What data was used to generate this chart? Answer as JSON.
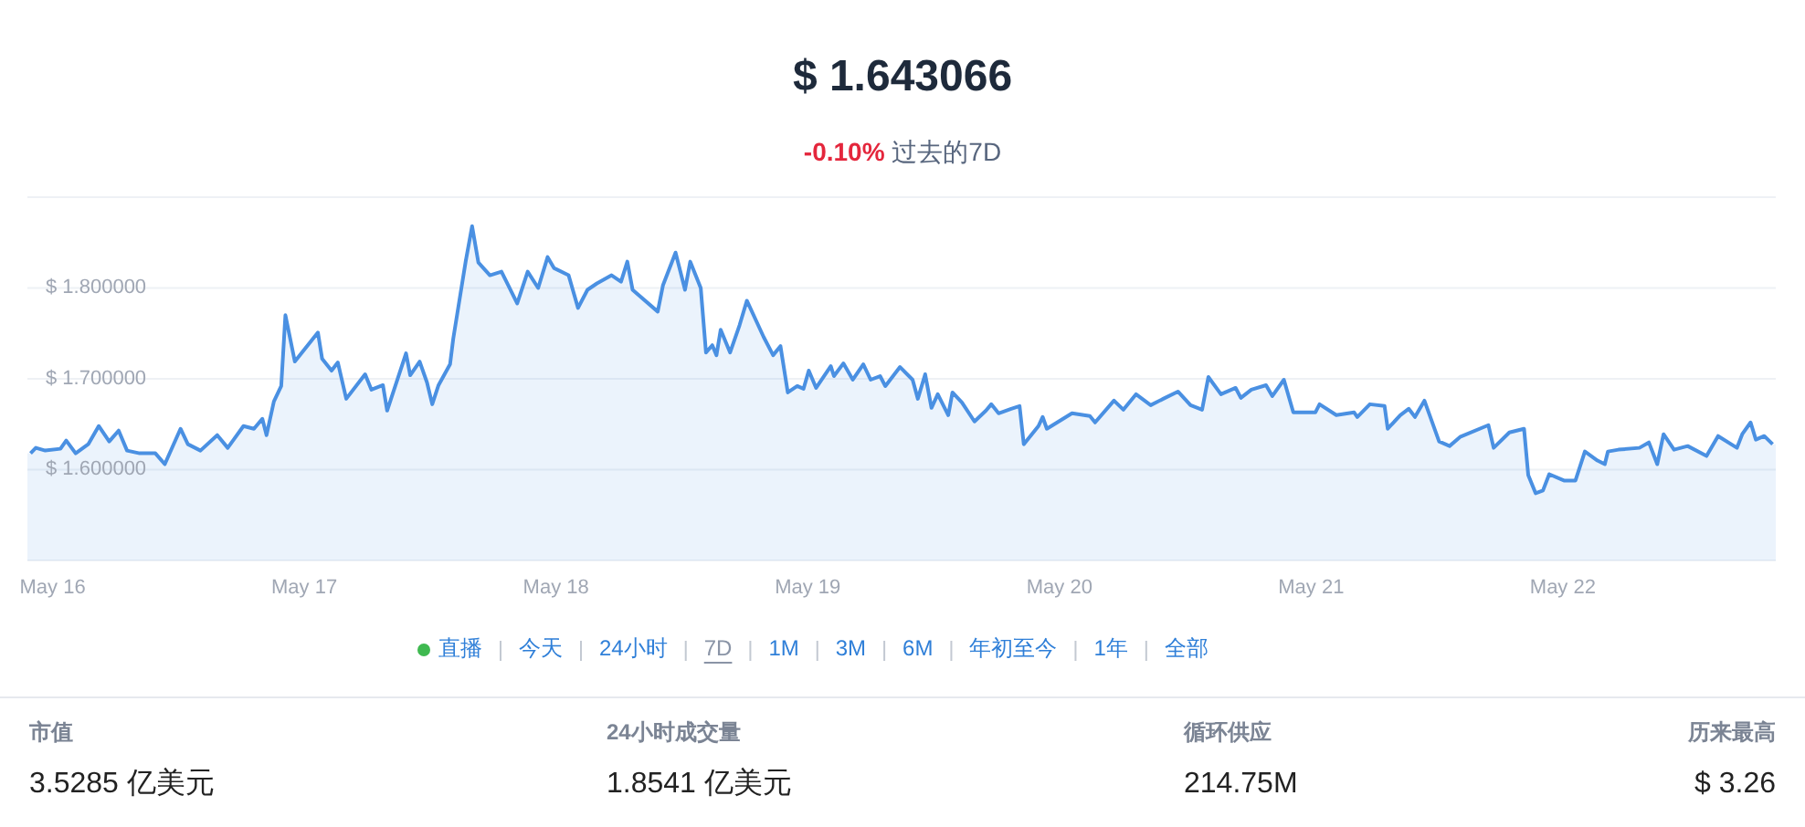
{
  "chart_data": [
    {
      "type": "area",
      "title": "$ 1.643066",
      "subtitle": "-0.10% 过去的7D",
      "x": [
        "--05-15T21:54",
        "--05-15T22:24",
        "--05-15T23:18",
        "--05-16T00:45",
        "--05-16T01:18",
        "--05-16T02:12",
        "--05-16T03:24",
        "--05-16T04:24",
        "--05-16T05:24",
        "--05-16T06:18",
        "--05-16T07:06",
        "--05-16T08:18",
        "--05-16T09:48",
        "--05-16T10:42",
        "--05-16T12:12",
        "--05-16T12:54",
        "--05-16T14:06",
        "--05-16T15:42",
        "--05-16T16:42",
        "--05-16T18:12",
        "--05-16T19:12",
        "--05-16T20:00",
        "--05-16T20:24",
        "--05-16T21:06",
        "--05-16T21:48",
        "--05-16T22:12",
        "--05-16T23:06",
        "--05-17T01:18",
        "--05-17T01:42",
        "--05-17T02:36",
        "--05-17T03:12",
        "--05-17T04:00",
        "--05-17T05:48",
        "--05-17T06:24",
        "--05-17T07:30",
        "--05-17T07:54",
        "--05-17T09:42",
        "--05-17T10:06",
        "--05-17T11:00",
        "--05-17T11:42",
        "--05-17T12:12",
        "--05-17T12:48",
        "--05-17T13:54",
        "--05-17T14:12",
        "--05-17T15:24",
        "--05-17T16:00",
        "--05-17T16:36",
        "--05-17T17:42",
        "--05-17T18:48",
        "--05-17T20:18",
        "--05-17T21:18",
        "--05-17T22:18",
        "--05-17T23:12",
        "--05-17T23:48",
        "--05-18T01:12",
        "--05-18T02:06",
        "--05-18T03:00",
        "--05-18T03:54",
        "--05-18T05:18",
        "--05-18T06:12",
        "--05-18T06:48",
        "--05-18T07:18",
        "--05-18T09:42",
        "--05-18T10:12",
        "--05-18T11:24",
        "--05-18T12:18",
        "--05-18T12:48",
        "--05-18T13:48",
        "--05-18T14:18",
        "--05-18T14:54",
        "--05-18T15:18",
        "--05-18T15:42",
        "--05-18T16:36",
        "--05-18T17:30",
        "--05-18T18:12",
        "--05-18T19:48",
        "--05-18T20:42",
        "--05-18T21:24",
        "--05-18T22:06",
        "--05-18T23:00",
        "--05-18T23:36",
        "--05-19T00:06",
        "--05-19T00:48",
        "--05-19T02:12",
        "--05-19T02:30",
        "--05-19T03:24",
        "--05-19T04:18",
        "--05-19T05:18",
        "--05-19T06:00",
        "--05-19T06:54",
        "--05-19T07:24",
        "--05-19T08:48",
        "--05-19T10:00",
        "--05-19T10:30",
        "--05-19T11:12",
        "--05-19T11:48",
        "--05-19T12:24",
        "--05-19T13:24",
        "--05-19T13:48",
        "--05-19T14:42",
        "--05-19T15:54",
        "--05-19T17:00",
        "--05-19T17:30",
        "--05-19T18:12",
        "--05-19T19:24",
        "--05-19T20:12",
        "--05-19T20:36",
        "--05-19T22:00",
        "--05-19T22:24",
        "--05-19T22:48",
        "--05-20T01:12",
        "--05-20T02:54",
        "--05-20T03:24",
        "--05-20T05:12",
        "--05-20T06:06",
        "--05-20T07:18",
        "--05-20T08:42",
        "--05-20T09:54",
        "--05-20T11:18",
        "--05-20T12:30",
        "--05-20T13:36",
        "--05-20T14:12",
        "--05-20T15:24",
        "--05-20T16:48",
        "--05-20T17:18",
        "--05-20T18:18",
        "--05-20T19:42",
        "--05-20T20:18",
        "--05-20T21:24",
        "--05-20T22:18",
        "--05-21T00:24",
        "--05-21T00:48",
        "--05-21T02:24",
        "--05-21T04:06",
        "--05-21T04:24",
        "--05-21T05:36",
        "--05-21T07:00",
        "--05-21T07:18",
        "--05-21T08:30",
        "--05-21T09:18",
        "--05-21T09:54",
        "--05-21T10:48",
        "--05-21T12:12",
        "--05-21T13:12",
        "--05-21T14:12",
        "--05-21T16:54",
        "--05-21T17:24",
        "--05-21T18:54",
        "--05-21T20:18",
        "--05-21T20:42",
        "--05-21T21:24",
        "--05-21T22:06",
        "--05-21T22:42",
        "--05-22T00:06",
        "--05-22T01:12",
        "--05-22T02:06",
        "--05-22T03:18",
        "--05-22T04:00",
        "--05-22T04:18",
        "--05-22T05:18",
        "--05-22T07:18",
        "--05-22T08:12",
        "--05-22T09:00",
        "--05-22T09:36",
        "--05-22T10:36",
        "--05-22T11:54",
        "--05-22T13:42",
        "--05-22T14:48",
        "--05-22T16:36",
        "--05-22T17:06",
        "--05-22T17:54",
        "--05-22T18:24",
        "--05-22T19:12",
        "--05-22T20:00"
      ],
      "series": [
        {
          "color": "#4a90e2",
          "values": [
            1.618,
            1.624,
            1.621,
            1.623,
            1.632,
            1.618,
            1.628,
            1.648,
            1.631,
            1.643,
            1.621,
            1.618,
            1.618,
            1.606,
            1.645,
            1.628,
            1.621,
            1.638,
            1.624,
            1.648,
            1.645,
            1.656,
            1.638,
            1.675,
            1.692,
            1.77,
            1.719,
            1.751,
            1.722,
            1.709,
            1.718,
            1.678,
            1.705,
            1.688,
            1.693,
            1.665,
            1.728,
            1.704,
            1.719,
            1.696,
            1.672,
            1.693,
            1.716,
            1.744,
            1.83,
            1.868,
            1.828,
            1.814,
            1.818,
            1.783,
            1.818,
            1.8,
            1.834,
            1.822,
            1.814,
            1.778,
            1.798,
            1.805,
            1.814,
            1.807,
            1.829,
            1.798,
            1.774,
            1.803,
            1.839,
            1.798,
            1.829,
            1.8,
            1.729,
            1.737,
            1.726,
            1.754,
            1.729,
            1.759,
            1.786,
            1.746,
            1.726,
            1.736,
            1.685,
            1.692,
            1.689,
            1.709,
            1.69,
            1.714,
            1.703,
            1.717,
            1.699,
            1.716,
            1.699,
            1.703,
            1.692,
            1.713,
            1.699,
            1.678,
            1.705,
            1.668,
            1.683,
            1.66,
            1.685,
            1.674,
            1.653,
            1.665,
            1.672,
            1.662,
            1.667,
            1.67,
            1.628,
            1.648,
            1.658,
            1.645,
            1.662,
            1.659,
            1.652,
            1.676,
            1.666,
            1.683,
            1.671,
            1.678,
            1.686,
            1.671,
            1.666,
            1.702,
            1.683,
            1.69,
            1.679,
            1.688,
            1.693,
            1.681,
            1.699,
            1.663,
            1.663,
            1.672,
            1.66,
            1.663,
            1.658,
            1.672,
            1.67,
            1.645,
            1.66,
            1.667,
            1.658,
            1.676,
            1.631,
            1.626,
            1.636,
            1.649,
            1.624,
            1.641,
            1.645,
            1.594,
            1.574,
            1.577,
            1.595,
            1.588,
            1.588,
            1.62,
            1.61,
            1.606,
            1.62,
            1.622,
            1.624,
            1.63,
            1.606,
            1.639,
            1.622,
            1.626,
            1.615,
            1.637,
            1.624,
            1.639,
            1.652,
            1.633,
            1.637,
            1.628
          ]
        }
      ],
      "xlim": [
        "--05-15T21:36",
        "--05-22T20:18"
      ],
      "xticks": [
        {
          "value": "--05-16",
          "label": "May 16"
        },
        {
          "value": "--05-17",
          "label": "May 17"
        },
        {
          "value": "--05-18",
          "label": "May 18"
        },
        {
          "value": "--05-19",
          "label": "May 19"
        },
        {
          "value": "--05-20",
          "label": "May 20"
        },
        {
          "value": "--05-21",
          "label": "May 21"
        },
        {
          "value": "--05-22",
          "label": "May 22"
        }
      ],
      "ylim": [
        1.5,
        1.9
      ],
      "yticks": [
        {
          "value": 1.5,
          "label": null
        },
        {
          "value": 1.6,
          "label": "$ 1.600000"
        },
        {
          "value": 1.7,
          "label": "$ 1.700000"
        },
        {
          "value": 1.8,
          "label": "$ 1.800000"
        },
        {
          "value": 1.9,
          "label": null
        }
      ],
      "grid": "y",
      "marker": "none",
      "annotations": [
        "直播",
        "今天",
        "24小时",
        "7D",
        "1M",
        "3M",
        "6M",
        "年初至今",
        "1年",
        "全部"
      ]
    },
    {
      "type": "other",
      "annotations": [
        "市值",
        "3.5285 亿美元",
        "24小时成交量",
        "1.8541 亿美元",
        "循环供应",
        "214.75M",
        "历来最高",
        "$ 3.26"
      ]
    }
  ]
}
